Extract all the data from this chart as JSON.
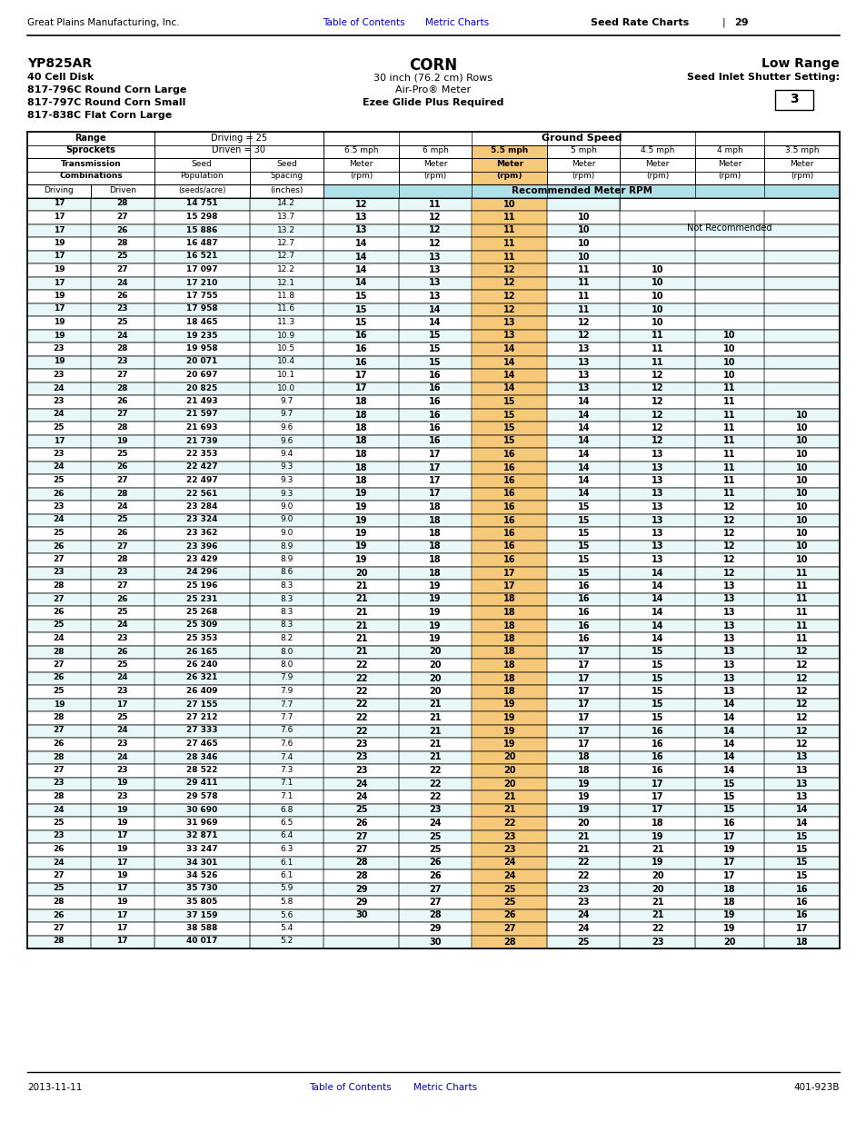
{
  "header_left": "Great Plains Manufacturing, Inc.",
  "header_right": "Seed Rate Charts | 29",
  "footer_left": "2013-11-11",
  "footer_right": "401-923B",
  "link_color": "#0000CC",
  "speed_highlight_bg": "#F5C87A",
  "rpm_header_bg": "#B0E0E8",
  "row_alt_bg": "#E8F8F8",
  "data_rows": [
    [
      17,
      28,
      "14 751",
      14.2,
      12,
      11,
      10,
      "",
      "",
      "",
      ""
    ],
    [
      17,
      27,
      "15 298",
      13.7,
      13,
      12,
      11,
      10,
      "",
      "",
      ""
    ],
    [
      17,
      26,
      "15 886",
      13.2,
      13,
      12,
      11,
      10,
      "",
      "",
      ""
    ],
    [
      19,
      28,
      "16 487",
      12.7,
      14,
      12,
      11,
      10,
      "",
      "",
      ""
    ],
    [
      17,
      25,
      "16 521",
      12.7,
      14,
      13,
      11,
      10,
      "",
      "",
      ""
    ],
    [
      19,
      27,
      "17 097",
      12.2,
      14,
      13,
      12,
      11,
      10,
      "",
      ""
    ],
    [
      17,
      24,
      "17 210",
      12.1,
      14,
      13,
      12,
      11,
      10,
      "",
      ""
    ],
    [
      19,
      26,
      "17 755",
      11.8,
      15,
      13,
      12,
      11,
      10,
      "",
      ""
    ],
    [
      17,
      23,
      "17 958",
      11.6,
      15,
      14,
      12,
      11,
      10,
      "",
      ""
    ],
    [
      19,
      25,
      "18 465",
      11.3,
      15,
      14,
      13,
      12,
      10,
      "",
      ""
    ],
    [
      19,
      24,
      "19 235",
      10.9,
      16,
      15,
      13,
      12,
      11,
      10,
      ""
    ],
    [
      23,
      28,
      "19 958",
      10.5,
      16,
      15,
      14,
      13,
      11,
      10,
      ""
    ],
    [
      19,
      23,
      "20 071",
      10.4,
      16,
      15,
      14,
      13,
      11,
      10,
      ""
    ],
    [
      23,
      27,
      "20 697",
      10.1,
      17,
      16,
      14,
      13,
      12,
      10,
      ""
    ],
    [
      24,
      28,
      "20 825",
      10.0,
      17,
      16,
      14,
      13,
      12,
      11,
      ""
    ],
    [
      23,
      26,
      "21 493",
      9.7,
      18,
      16,
      15,
      14,
      12,
      11,
      ""
    ],
    [
      24,
      27,
      "21 597",
      9.7,
      18,
      16,
      15,
      14,
      12,
      11,
      10
    ],
    [
      25,
      28,
      "21 693",
      9.6,
      18,
      16,
      15,
      14,
      12,
      11,
      10
    ],
    [
      17,
      19,
      "21 739",
      9.6,
      18,
      16,
      15,
      14,
      12,
      11,
      10
    ],
    [
      23,
      25,
      "22 353",
      9.4,
      18,
      17,
      16,
      14,
      13,
      11,
      10
    ],
    [
      24,
      26,
      "22 427",
      9.3,
      18,
      17,
      16,
      14,
      13,
      11,
      10
    ],
    [
      25,
      27,
      "22 497",
      9.3,
      18,
      17,
      16,
      14,
      13,
      11,
      10
    ],
    [
      26,
      28,
      "22 561",
      9.3,
      19,
      17,
      16,
      14,
      13,
      11,
      10
    ],
    [
      23,
      24,
      "23 284",
      9.0,
      19,
      18,
      16,
      15,
      13,
      12,
      10
    ],
    [
      24,
      25,
      "23 324",
      9.0,
      19,
      18,
      16,
      15,
      13,
      12,
      10
    ],
    [
      25,
      26,
      "23 362",
      9.0,
      19,
      18,
      16,
      15,
      13,
      12,
      10
    ],
    [
      26,
      27,
      "23 396",
      8.9,
      19,
      18,
      16,
      15,
      13,
      12,
      10
    ],
    [
      27,
      28,
      "23 429",
      8.9,
      19,
      18,
      16,
      15,
      13,
      12,
      10
    ],
    [
      23,
      23,
      "24 296",
      8.6,
      20,
      18,
      17,
      15,
      14,
      12,
      11
    ],
    [
      28,
      27,
      "25 196",
      8.3,
      21,
      19,
      17,
      16,
      14,
      13,
      11
    ],
    [
      27,
      26,
      "25 231",
      8.3,
      21,
      19,
      18,
      16,
      14,
      13,
      11
    ],
    [
      26,
      25,
      "25 268",
      8.3,
      21,
      19,
      18,
      16,
      14,
      13,
      11
    ],
    [
      25,
      24,
      "25 309",
      8.3,
      21,
      19,
      18,
      16,
      14,
      13,
      11
    ],
    [
      24,
      23,
      "25 353",
      8.2,
      21,
      19,
      18,
      16,
      14,
      13,
      11
    ],
    [
      28,
      26,
      "26 165",
      8.0,
      21,
      20,
      18,
      17,
      15,
      13,
      12
    ],
    [
      27,
      25,
      "26 240",
      8.0,
      22,
      20,
      18,
      17,
      15,
      13,
      12
    ],
    [
      26,
      24,
      "26 321",
      7.9,
      22,
      20,
      18,
      17,
      15,
      13,
      12
    ],
    [
      25,
      23,
      "26 409",
      7.9,
      22,
      20,
      18,
      17,
      15,
      13,
      12
    ],
    [
      19,
      17,
      "27 155",
      7.7,
      22,
      21,
      19,
      17,
      15,
      14,
      12
    ],
    [
      28,
      25,
      "27 212",
      7.7,
      22,
      21,
      19,
      17,
      15,
      14,
      12
    ],
    [
      27,
      24,
      "27 333",
      7.6,
      22,
      21,
      19,
      17,
      16,
      14,
      12
    ],
    [
      26,
      23,
      "27 465",
      7.6,
      23,
      21,
      19,
      17,
      16,
      14,
      12
    ],
    [
      28,
      24,
      "28 346",
      7.4,
      23,
      21,
      20,
      18,
      16,
      14,
      13
    ],
    [
      27,
      23,
      "28 522",
      7.3,
      23,
      22,
      20,
      18,
      16,
      14,
      13
    ],
    [
      23,
      19,
      "29 411",
      7.1,
      24,
      22,
      20,
      19,
      17,
      15,
      13
    ],
    [
      28,
      23,
      "29 578",
      7.1,
      24,
      22,
      21,
      19,
      17,
      15,
      13
    ],
    [
      24,
      19,
      "30 690",
      6.8,
      25,
      23,
      21,
      19,
      17,
      15,
      14
    ],
    [
      25,
      19,
      "31 969",
      6.5,
      26,
      24,
      22,
      20,
      18,
      16,
      14
    ],
    [
      23,
      17,
      "32 871",
      6.4,
      27,
      25,
      23,
      21,
      19,
      17,
      15
    ],
    [
      26,
      19,
      "33 247",
      6.3,
      27,
      25,
      23,
      21,
      21,
      19,
      15
    ],
    [
      24,
      17,
      "34 301",
      6.1,
      28,
      26,
      24,
      22,
      19,
      17,
      15
    ],
    [
      27,
      19,
      "34 526",
      6.1,
      28,
      26,
      24,
      22,
      20,
      17,
      15
    ],
    [
      25,
      17,
      "35 730",
      5.9,
      29,
      27,
      25,
      23,
      20,
      18,
      16
    ],
    [
      28,
      19,
      "35 805",
      5.8,
      29,
      27,
      25,
      23,
      21,
      18,
      16
    ],
    [
      26,
      17,
      "37 159",
      5.6,
      30,
      28,
      26,
      24,
      21,
      19,
      16
    ],
    [
      27,
      17,
      "38 588",
      5.4,
      "",
      29,
      27,
      24,
      22,
      19,
      17
    ],
    [
      28,
      17,
      "40 017",
      5.2,
      "",
      30,
      28,
      25,
      23,
      20,
      18
    ]
  ]
}
